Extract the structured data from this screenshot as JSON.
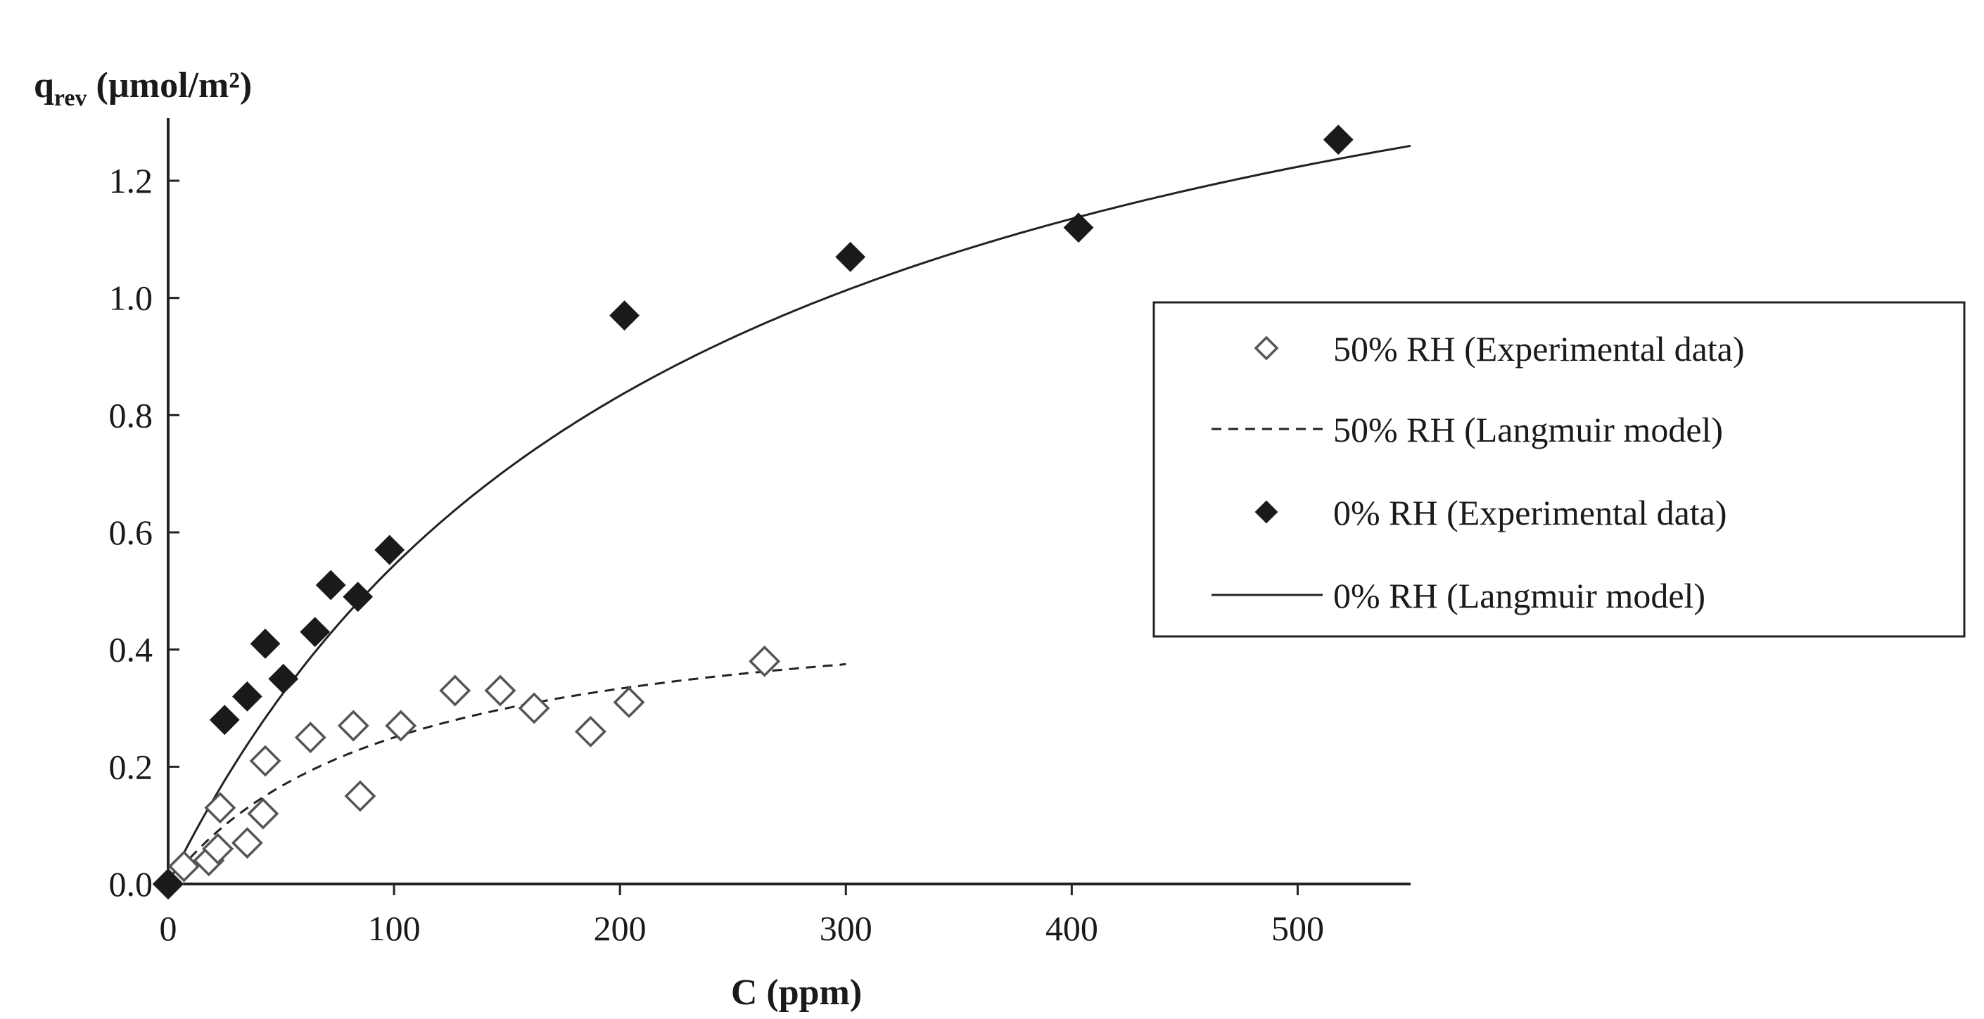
{
  "chart_data": {
    "type": "scatter",
    "ylabel": {
      "main": "q",
      "sub": "rev",
      "rest": " (µmol/m²)"
    },
    "xlabel": "C (ppm)",
    "xlim": [
      0,
      550
    ],
    "ylim": [
      0,
      1.3
    ],
    "x_ticks": [
      0,
      100,
      200,
      300,
      400,
      500
    ],
    "x_tick_labels": [
      "0",
      "100",
      "200",
      "300",
      "400",
      "500"
    ],
    "y_ticks": [
      0.0,
      0.2,
      0.4,
      0.6,
      0.8,
      1.0,
      1.2
    ],
    "y_tick_labels": [
      "0.0",
      "0.2",
      "0.4",
      "0.6",
      "0.8",
      "1.0",
      "1.2"
    ],
    "legend_position": "right-middle",
    "series": [
      {
        "name": "50% RH (Experimental data)",
        "kind": "points",
        "marker": "diamond-open",
        "points": [
          [
            0,
            0.0
          ],
          [
            7,
            0.03
          ],
          [
            18,
            0.04
          ],
          [
            22,
            0.06
          ],
          [
            23,
            0.13
          ],
          [
            35,
            0.07
          ],
          [
            42,
            0.12
          ],
          [
            43,
            0.21
          ],
          [
            63,
            0.25
          ],
          [
            82,
            0.27
          ],
          [
            85,
            0.15
          ],
          [
            103,
            0.27
          ],
          [
            127,
            0.33
          ],
          [
            147,
            0.33
          ],
          [
            162,
            0.3
          ],
          [
            187,
            0.26
          ],
          [
            204,
            0.31
          ],
          [
            264,
            0.38
          ]
        ]
      },
      {
        "name": "50% RH (Langmuir model)",
        "kind": "line",
        "style": "dashed",
        "model": {
          "qmax": 0.5,
          "K": 0.01,
          "x_range": [
            0,
            300
          ]
        }
      },
      {
        "name": "0% RH (Experimental data)",
        "kind": "points",
        "marker": "diamond-filled",
        "points": [
          [
            0,
            0.0
          ],
          [
            25,
            0.28
          ],
          [
            35,
            0.32
          ],
          [
            43,
            0.41
          ],
          [
            51,
            0.35
          ],
          [
            65,
            0.43
          ],
          [
            72,
            0.51
          ],
          [
            84,
            0.49
          ],
          [
            98,
            0.57
          ],
          [
            202,
            0.97
          ],
          [
            302,
            1.07
          ],
          [
            403,
            1.12
          ],
          [
            518,
            1.27
          ]
        ]
      },
      {
        "name": "0% RH (Langmuir model)",
        "kind": "line",
        "style": "solid",
        "model": {
          "qmax": 1.78,
          "K": 0.0044,
          "x_range": [
            0,
            550
          ]
        }
      }
    ]
  }
}
